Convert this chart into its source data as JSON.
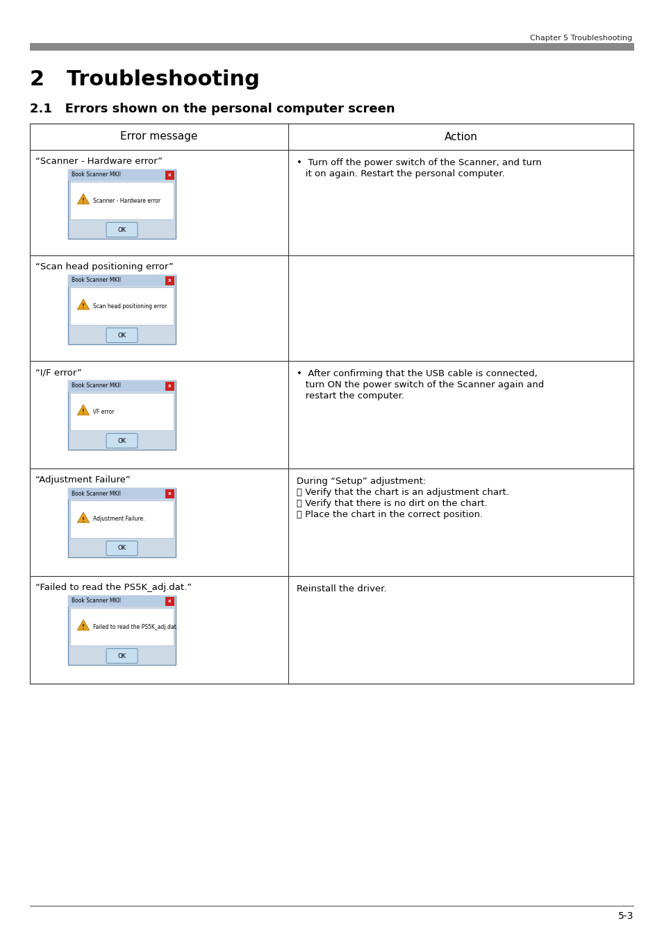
{
  "page_header": "Chapter 5 Troubleshooting",
  "header_bar_color": "#888888",
  "chapter_title": "2   Troubleshooting",
  "section_title": "2.1   Errors shown on the personal computer screen",
  "table_header_left": "Error message",
  "table_header_right": "Action",
  "rows": [
    {
      "error_label": "“Scanner - Hardware error”",
      "dialog_title": "Book Scanner MKII",
      "dialog_msg": "Scanner - Hardware error",
      "action_lines": [
        "•  Turn off the power switch of the Scanner, and turn",
        "   it on again. Restart the personal computer."
      ]
    },
    {
      "error_label": "“Scan head positioning error”",
      "dialog_title": "Book Scanner MKII",
      "dialog_msg": "Scan head positioning error",
      "action_lines": []
    },
    {
      "error_label": "“I/F error”",
      "dialog_title": "Book Scanner MKII",
      "dialog_msg": "I/F error",
      "action_lines": [
        "•  After confirming that the USB cable is connected,",
        "   turn ON the power switch of the Scanner again and",
        "   restart the computer."
      ]
    },
    {
      "error_label": "“Adjustment Failure”",
      "dialog_title": "Book Scanner MKII",
      "dialog_msg": "Adjustment Failure.",
      "action_lines": [
        "During “Setup” adjustment:",
        "・ Verify that the chart is an adjustment chart.",
        "・ Verify that there is no dirt on the chart.",
        "・ Place the chart in the correct position."
      ]
    },
    {
      "error_label": "“Failed to read the PS5K_adj.dat.”",
      "dialog_title": "Book Scanner MKII",
      "dialog_msg": "Failed to read the PS5K_adj.dat.",
      "action_lines": [
        "Reinstall the driver."
      ]
    }
  ],
  "footer_text": "5-3",
  "bg_color": "#ffffff",
  "table_border_color": "#333333",
  "dialog_outer_bg": "#cdd9e5",
  "dialog_title_bg": "#b8cce4",
  "dialog_inner_bg": "#ffffff",
  "dialog_close_color": "#cc2222",
  "dialog_btn_bg": "#c8dff0",
  "warning_color": "#e8a020",
  "warning_border": "#b07000"
}
